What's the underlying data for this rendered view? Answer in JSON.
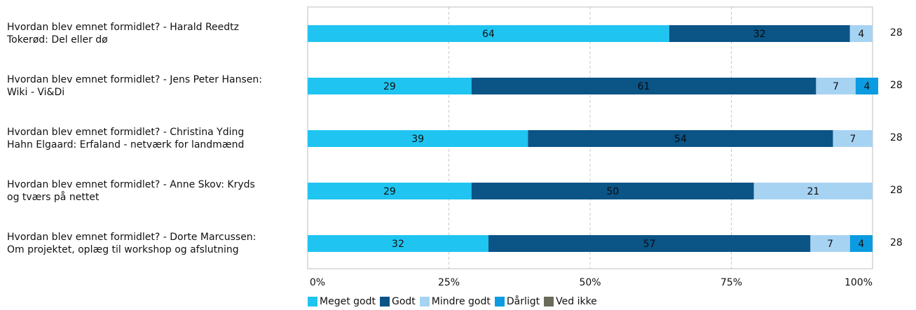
{
  "chart_data": {
    "type": "bar",
    "orientation": "horizontal",
    "stacked": true,
    "categories": [
      "Hvordan blev emnet formidlet? - Harald Reedtz\nTokerød: Del eller dø",
      "Hvordan blev emnet formidlet? - Jens Peter Hansen:\nWiki - Vi&Di",
      "Hvordan blev emnet formidlet? - Christina Yding\nHahn Elgaard: Erfaland - netværk for landmænd",
      "Hvordan blev emnet formidlet? - Anne Skov: Kryds\nog tværs på nettet",
      "Hvordan blev emnet formidlet? - Dorte Marcussen:\nOm projektet, oplæg til workshop og afslutning"
    ],
    "n": [
      "28",
      "28",
      "28",
      "28",
      "28"
    ],
    "series": [
      {
        "name": "Meget godt",
        "color": "#1fc4f0",
        "values": [
          64,
          29,
          39,
          29,
          32
        ]
      },
      {
        "name": "Godt",
        "color": "#0a5486",
        "values": [
          32,
          61,
          54,
          50,
          57
        ]
      },
      {
        "name": "Mindre godt",
        "color": "#a7d3f3",
        "values": [
          4,
          7,
          7,
          21,
          7
        ]
      },
      {
        "name": "Dårligt",
        "color": "#0b9be0",
        "values": [
          0,
          4,
          0,
          0,
          4
        ]
      },
      {
        "name": "Ved ikke",
        "color": "#6b6b5b",
        "values": [
          0,
          0,
          0,
          0,
          0
        ]
      }
    ],
    "xlim": [
      0,
      100
    ],
    "x_ticks": [
      "0%",
      "25%",
      "50%",
      "75%",
      "100%"
    ],
    "grid": true,
    "legend_position": "bottom"
  }
}
